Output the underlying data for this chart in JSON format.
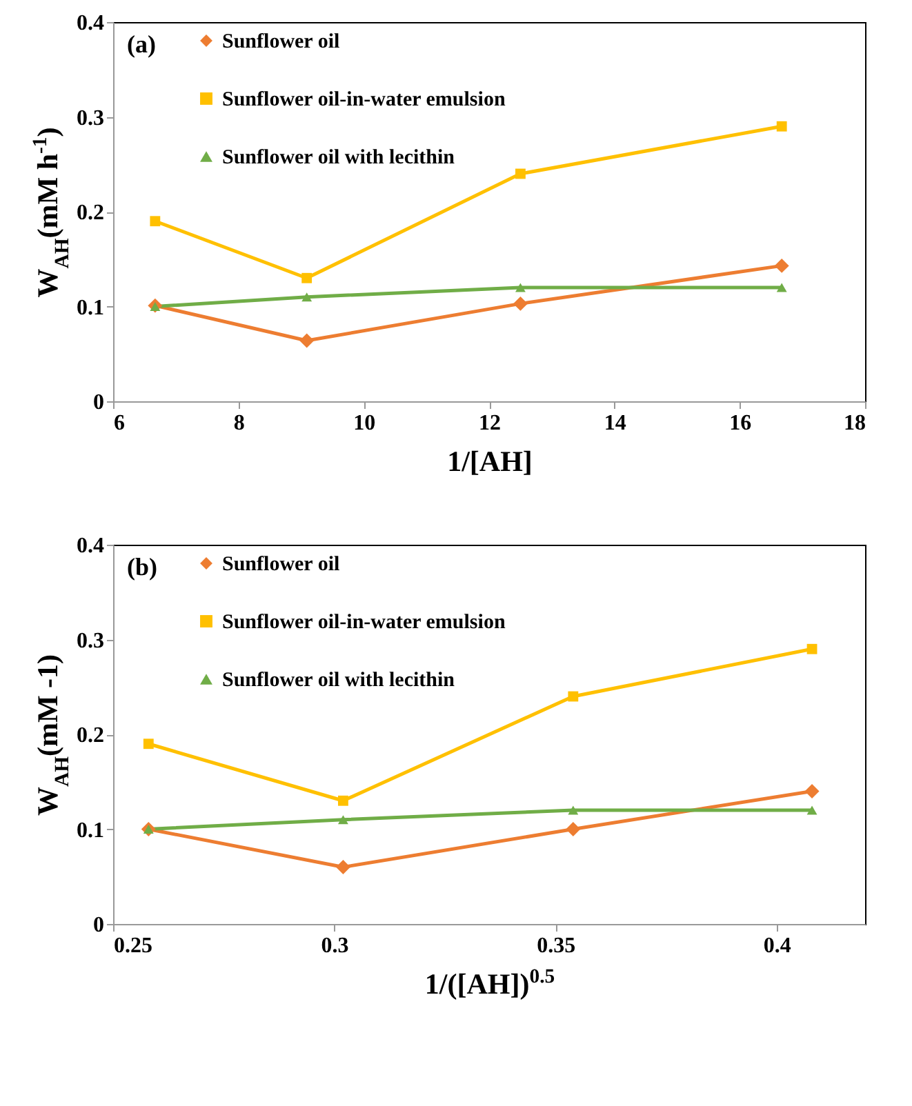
{
  "chart_data": [
    {
      "type": "line",
      "xlabel": "1/[AH]",
      "ylabel": "W$_{AH}$(mM h$^{-1}$)",
      "annotations": [
        "(a)"
      ],
      "x": [
        6.67,
        9.09,
        12.5,
        16.67
      ],
      "xlim": [
        6,
        18
      ],
      "xticks": [
        6,
        8,
        10,
        12,
        14,
        16,
        18
      ],
      "ylim": [
        0,
        0.4
      ],
      "yticks": [
        0,
        0.1,
        0.2,
        0.3,
        0.4
      ],
      "legend": "top left",
      "series": [
        {
          "name": "Sunflower oil",
          "color": "#ed7d31",
          "marker": "diamond",
          "values": [
            0.101,
            0.064,
            0.103,
            0.143
          ]
        },
        {
          "name": "Sunflower oil-in-water emulsion",
          "color": "#ffc000",
          "marker": "square",
          "values": [
            0.19,
            0.13,
            0.24,
            0.29
          ]
        },
        {
          "name": "Sunflower oil with lecithin",
          "color": "#70ad47",
          "marker": "triangle",
          "values": [
            0.1,
            0.11,
            0.12,
            0.12
          ]
        }
      ]
    },
    {
      "type": "line",
      "xlabel": "1/([AH])$^{0.5}$",
      "ylabel": "W$_{AH}$(mM -1)",
      "annotations": [
        "(b)"
      ],
      "x": [
        0.258,
        0.302,
        0.354,
        0.408
      ],
      "xlim": [
        0.25,
        0.42
      ],
      "xticks": [
        0.25,
        0.3,
        0.35,
        0.4
      ],
      "ylim": [
        0,
        0.4
      ],
      "yticks": [
        0,
        0.1,
        0.2,
        0.3,
        0.4
      ],
      "legend": "top left",
      "series": [
        {
          "name": "Sunflower oil",
          "color": "#ed7d31",
          "marker": "diamond",
          "values": [
            0.1,
            0.06,
            0.1,
            0.14
          ]
        },
        {
          "name": "Sunflower oil-in-water emulsion",
          "color": "#ffc000",
          "marker": "square",
          "values": [
            0.19,
            0.13,
            0.24,
            0.29
          ]
        },
        {
          "name": "Sunflower oil with lecithin",
          "color": "#70ad47",
          "marker": "triangle",
          "values": [
            0.1,
            0.11,
            0.12,
            0.12
          ]
        }
      ]
    }
  ]
}
